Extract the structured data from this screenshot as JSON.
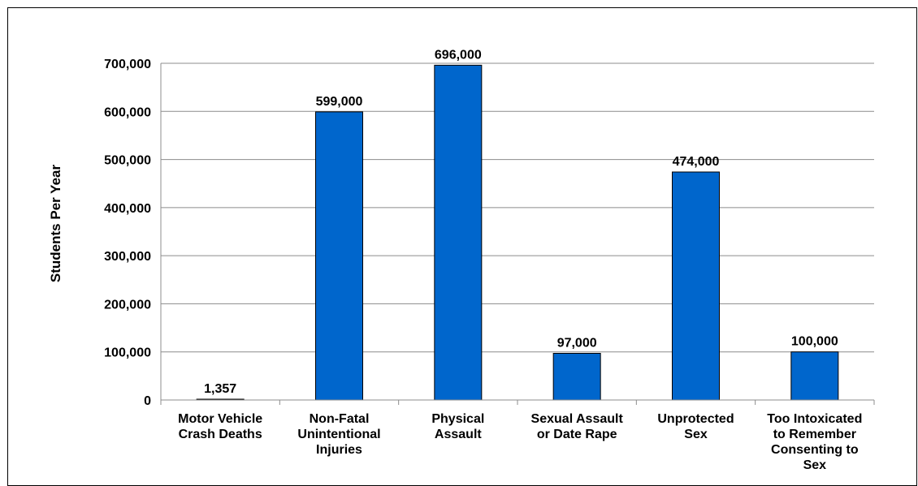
{
  "chart_data": {
    "type": "bar",
    "title": "",
    "xlabel": "",
    "ylabel": "Students Per Year",
    "ylim": [
      0,
      700000
    ],
    "yticks": [
      0,
      100000,
      200000,
      300000,
      400000,
      500000,
      600000,
      700000
    ],
    "ytick_labels": [
      "0",
      "100,000",
      "200,000",
      "300,000",
      "400,000",
      "500,000",
      "600,000",
      "700,000"
    ],
    "grid": true,
    "categories": [
      [
        "Motor Vehicle",
        "Crash Deaths"
      ],
      [
        "Non-Fatal",
        "Unintentional",
        "Injuries"
      ],
      [
        "Physical",
        "Assault"
      ],
      [
        "Sexual Assault",
        "or Date Rape"
      ],
      [
        "Unprotected",
        "Sex"
      ],
      [
        "Too Intoxicated",
        "to Remember",
        "Consenting to",
        "Sex"
      ]
    ],
    "values": [
      1357,
      599000,
      696000,
      97000,
      474000,
      100000
    ],
    "data_labels": [
      "1,357",
      "599,000",
      "696,000",
      "97,000",
      "474,000",
      "100,000"
    ],
    "bar_color": "#0066CC"
  }
}
